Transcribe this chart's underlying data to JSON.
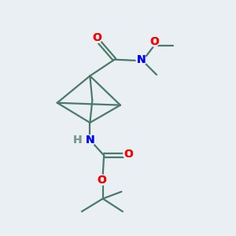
{
  "bg_color": "#eaeff3",
  "bond_color": "#4a7a6a",
  "bond_width": 1.6,
  "atom_colors": {
    "O": "#ff0000",
    "N": "#0000ff",
    "C": "#4a7a6a",
    "H": "#7a9a8a"
  },
  "font_size_atom": 10,
  "canvas_xlim": [
    0,
    10
  ],
  "canvas_ylim": [
    0,
    10
  ]
}
